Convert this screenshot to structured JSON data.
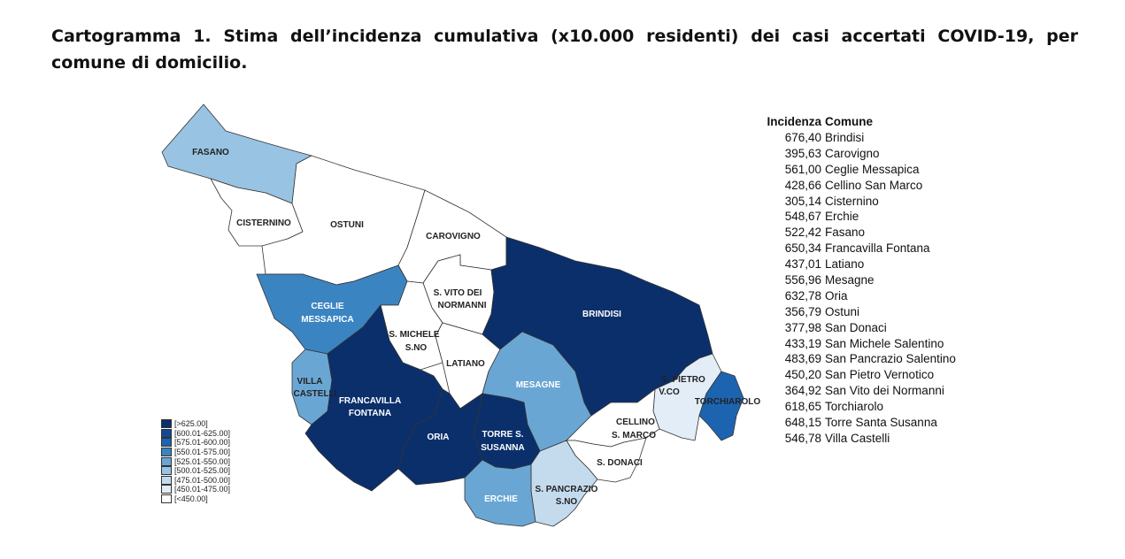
{
  "title_line1": "Cartogramma 1. Stima dell’incidenza cumulativa (x10.000 residenti) dei casi accertati COVID-19, per",
  "title_line2": "comune di domicilio.",
  "table": {
    "header_value": "Incidenza",
    "header_name": "Comune",
    "rows": [
      {
        "value": "676,40",
        "name": "Brindisi"
      },
      {
        "value": "395,63",
        "name": "Carovigno"
      },
      {
        "value": "561,00",
        "name": "Ceglie Messapica"
      },
      {
        "value": "428,66",
        "name": "Cellino San Marco"
      },
      {
        "value": "305,14",
        "name": "Cisternino"
      },
      {
        "value": "548,67",
        "name": "Erchie"
      },
      {
        "value": "522,42",
        "name": "Fasano"
      },
      {
        "value": "650,34",
        "name": "Francavilla Fontana"
      },
      {
        "value": "437,01",
        "name": "Latiano"
      },
      {
        "value": "556,96",
        "name": "Mesagne"
      },
      {
        "value": "632,78",
        "name": "Oria"
      },
      {
        "value": "356,79",
        "name": "Ostuni"
      },
      {
        "value": "377,98",
        "name": "San Donaci"
      },
      {
        "value": "433,19",
        "name": "San Michele Salentino"
      },
      {
        "value": "483,69",
        "name": "San Pancrazio Salentino"
      },
      {
        "value": "450,20",
        "name": "San Pietro Vernotico"
      },
      {
        "value": "364,92",
        "name": "San Vito dei Normanni"
      },
      {
        "value": "618,65",
        "name": "Torchiarolo"
      },
      {
        "value": "648,15",
        "name": "Torre Santa Susanna"
      },
      {
        "value": "546,78",
        "name": "Villa Castelli"
      }
    ]
  },
  "legend": [
    {
      "label": "[>625.00]",
      "color": "#0b2f6b"
    },
    {
      "label": "[600.01-625.00]",
      "color": "#114a93"
    },
    {
      "label": "[575.01-600.00]",
      "color": "#1c64b0"
    },
    {
      "label": "[550.01-575.00]",
      "color": "#3b84c2"
    },
    {
      "label": "[525.01-550.00]",
      "color": "#6aa6d4"
    },
    {
      "label": "[500.01-525.00]",
      "color": "#99c3e2"
    },
    {
      "label": "[475.01-500.00]",
      "color": "#c4dbee"
    },
    {
      "label": "[450.01-475.00]",
      "color": "#e2edf7"
    },
    {
      "label": "[<450.00]",
      "color": "#ffffff"
    }
  ],
  "map_labels": {
    "fasano": "FASANO",
    "cisternino": "CISTERNINO",
    "ostuni": "OSTUNI",
    "carovigno": "CAROVIGNO",
    "svito_1": "S. VITO DEI",
    "svito_2": "NORMANNI",
    "ceglie_1": "CEGLIE",
    "ceglie_2": "MESSAPICA",
    "brindisi": "BRINDISI",
    "smichele_1": "S. MICHELE",
    "smichele_2": "S.NO",
    "latiano": "LATIANO",
    "villa_1": "VILLA",
    "villa_2": "CASTELLI",
    "mesagne": "MESAGNE",
    "spietro_1": "S. PIETRO",
    "spietro_2": "V.CO",
    "francavilla_1": "FRANCAVILLA",
    "francavilla_2": "FONTANA",
    "torchiarolo": "TORCHIAROLO",
    "cellino_1": "CELLINO",
    "cellino_2": "S. MARCO",
    "oria": "ORIA",
    "torre_1": "TORRE S.",
    "torre_2": "SUSANNA",
    "sdonaci": "S. DONACI",
    "spancrazio_1": "S. PANCRAZIO",
    "spancrazio_2": "S.NO",
    "erchie": "ERCHIE"
  }
}
